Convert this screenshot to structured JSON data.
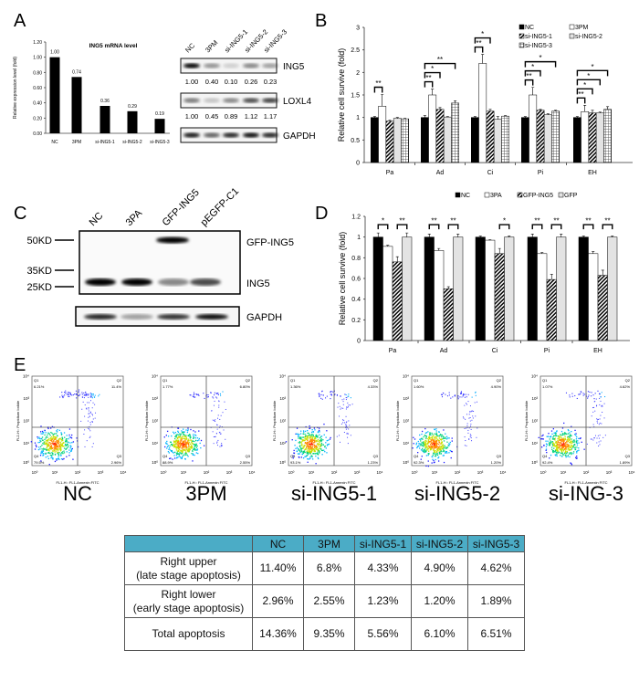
{
  "panel_labels": {
    "A": "A",
    "B": "B",
    "C": "C",
    "D": "D",
    "E": "E"
  },
  "chart_data": [
    {
      "id": "A",
      "type": "bar",
      "title": "ING5 mRNA level",
      "ylabel": "Relative expression level (fold)",
      "categories": [
        "NC",
        "3PM",
        "si-ING5-1",
        "si-ING5-2",
        "si-ING5-3"
      ],
      "values": [
        1.0,
        0.74,
        0.36,
        0.29,
        0.19
      ],
      "data_labels": [
        "1.00",
        "0.74",
        "0.36",
        "0.29",
        "0.19"
      ],
      "ylim": [
        0,
        1.2
      ],
      "yticks": [
        "0.00",
        "0.20",
        "0.40",
        "0.60",
        "0.80",
        "1.00",
        "1.20"
      ],
      "grid": false,
      "color": "#000000"
    },
    {
      "id": "B",
      "type": "bar",
      "ylabel": "Relative cell survive (fold)",
      "categories": [
        "Pa",
        "Ad",
        "Ci",
        "Pi",
        "EH"
      ],
      "ylim": [
        0,
        3
      ],
      "yticks": [
        "0",
        "0.5",
        "1",
        "1.5",
        "2",
        "2.5",
        "3"
      ],
      "legend_position": "top-right",
      "series": [
        {
          "name": "NC",
          "fill": "solid-black",
          "values": [
            1,
            1,
            1,
            1,
            1
          ],
          "errors": [
            0.02,
            0.04,
            0.02,
            0.02,
            0.02
          ]
        },
        {
          "name": "3PM",
          "fill": "white",
          "values": [
            1.25,
            1.5,
            2.2,
            1.5,
            1.13
          ],
          "errors": [
            0.26,
            0.13,
            0.2,
            0.17,
            0.14
          ]
        },
        {
          "name": "si-ING5-1",
          "fill": "diagonal-hatch",
          "values": [
            0.92,
            1.18,
            1.14,
            1.16,
            1.1
          ],
          "errors": [
            0.02,
            0.04,
            0.04,
            0.02,
            0.06
          ]
        },
        {
          "name": "si-ING5-2",
          "fill": "light-gray",
          "values": [
            0.98,
            1.01,
            0.96,
            1.06,
            1.1
          ],
          "errors": [
            0.02,
            0.01,
            0.06,
            0.02,
            0.02
          ]
        },
        {
          "name": "si-ING5-3",
          "fill": "grid",
          "values": [
            0.97,
            1.32,
            1.03,
            1.14,
            1.18
          ],
          "errors": [
            0.01,
            0.05,
            0.01,
            0.02,
            0.06
          ]
        }
      ],
      "significance": [
        {
          "category": "Pa",
          "from": "NC",
          "to": "3PM",
          "label": "**"
        },
        {
          "category": "Ad",
          "from": "NC",
          "to": "3PM",
          "label": "**"
        },
        {
          "category": "Ad",
          "from": "NC",
          "to": "si-ING5-1",
          "label": "*"
        },
        {
          "category": "Ad",
          "from": "NC",
          "to": "si-ING5-3",
          "label": "**"
        },
        {
          "category": "Ci",
          "from": "NC",
          "to": "3PM",
          "label": "**"
        },
        {
          "category": "Ci",
          "from": "NC",
          "to": "si-ING5-1",
          "label": "*"
        },
        {
          "category": "Pi",
          "from": "NC",
          "to": "3PM",
          "label": "**"
        },
        {
          "category": "Pi",
          "from": "NC",
          "to": "si-ING5-1",
          "label": "*"
        },
        {
          "category": "Pi",
          "from": "NC",
          "to": "si-ING5-3",
          "label": "*"
        },
        {
          "category": "EH",
          "from": "NC",
          "to": "3PM",
          "label": "**"
        },
        {
          "category": "EH",
          "from": "NC",
          "to": "si-ING5-1",
          "label": "*"
        },
        {
          "category": "EH",
          "from": "NC",
          "to": "si-ING5-2",
          "label": "*"
        },
        {
          "category": "EH",
          "from": "NC",
          "to": "si-ING5-3",
          "label": "*"
        }
      ]
    },
    {
      "id": "D",
      "type": "bar",
      "ylabel": "Relative cell survive (fold)",
      "categories": [
        "Pa",
        "Ad",
        "Ci",
        "Pi",
        "EH"
      ],
      "ylim": [
        0,
        1.2
      ],
      "yticks": [
        "0",
        "0.2",
        "0.4",
        "0.6",
        "0.8",
        "1",
        "1.2"
      ],
      "legend_position": "top",
      "series": [
        {
          "name": "NC",
          "fill": "solid-black",
          "values": [
            1,
            1,
            1,
            1,
            1
          ],
          "errors": [
            0.04,
            0.03,
            0.01,
            0.03,
            0.01
          ]
        },
        {
          "name": "3PA",
          "fill": "white",
          "values": [
            0.91,
            0.87,
            0.97,
            0.84,
            0.84
          ],
          "errors": [
            0.01,
            0.02,
            0.005,
            0.01,
            0.02
          ]
        },
        {
          "name": "GFP-ING5",
          "fill": "diagonal-hatch",
          "values": [
            0.76,
            0.5,
            0.84,
            0.59,
            0.63
          ],
          "errors": [
            0.05,
            0.02,
            0.05,
            0.05,
            0.05
          ]
        },
        {
          "name": "GFP",
          "fill": "light-gray",
          "values": [
            1,
            1,
            1,
            1,
            1
          ],
          "errors": [
            0.04,
            0.03,
            0.01,
            0.03,
            0.01
          ]
        }
      ],
      "significance": [
        {
          "category": "Pa",
          "from": "NC",
          "to": "3PA",
          "label": "*"
        },
        {
          "category": "Pa",
          "from": "GFP-ING5",
          "to": "GFP",
          "label": "**"
        },
        {
          "category": "Ad",
          "from": "NC",
          "to": "3PA",
          "label": "**"
        },
        {
          "category": "Ad",
          "from": "GFP-ING5",
          "to": "GFP",
          "label": "**"
        },
        {
          "category": "Ci",
          "from": "GFP-ING5",
          "to": "GFP",
          "label": "*"
        },
        {
          "category": "Pi",
          "from": "NC",
          "to": "3PA",
          "label": "**"
        },
        {
          "category": "Pi",
          "from": "GFP-ING5",
          "to": "GFP",
          "label": "**"
        },
        {
          "category": "EH",
          "from": "NC",
          "to": "3PA",
          "label": "**"
        },
        {
          "category": "EH",
          "from": "GFP-ING5",
          "to": "GFP",
          "label": "**"
        }
      ]
    }
  ],
  "blot_A": {
    "lanes": [
      "NC",
      "3PM",
      "si-ING5-1",
      "si-ING5-2",
      "si-ING5-3"
    ],
    "rows": [
      {
        "label": "ING5",
        "quant": [
          "1.00",
          "0.40",
          "0.10",
          "0.26",
          "0.23"
        ],
        "intensity": [
          1,
          0.4,
          0.15,
          0.45,
          0.35
        ]
      },
      {
        "label": "LOXL4",
        "quant": [
          "1.00",
          "0.45",
          "0.89",
          "1.12",
          "1.17"
        ],
        "intensity": [
          0.5,
          0.2,
          0.45,
          0.7,
          0.75
        ]
      },
      {
        "label": "GAPDH",
        "quant": [],
        "intensity": [
          0.9,
          0.6,
          0.85,
          0.95,
          0.85
        ]
      }
    ]
  },
  "blot_C": {
    "lanes": [
      "NC",
      "3PA",
      "GFP-ING5",
      "pEGFP-C1"
    ],
    "markers": [
      "50KD",
      "35KD",
      "25KD"
    ],
    "band_labels": [
      "GFP-ING5",
      "ING5"
    ],
    "gapdh_label": "GAPDH"
  },
  "flow_E": {
    "y_axis_label": "FL2-H:: Propidium Iodide",
    "x_axis_label": "FL1-H:: FL1-Annexin FITC",
    "axis_ticks": [
      "10⁰",
      "10¹",
      "10²",
      "10³",
      "10⁴"
    ],
    "plots": [
      {
        "label": "NC",
        "Q1": "6.21%",
        "Q2": "11.4%",
        "Q3": "2.96%",
        "Q4": "79.5%"
      },
      {
        "label": "3PM",
        "Q1": "1.77%",
        "Q2": "6.80%",
        "Q3": "2.55%",
        "Q4": "88.9%"
      },
      {
        "label": "si-ING5-1",
        "Q1": "1.36%",
        "Q2": "4.33%",
        "Q3": "1.23%",
        "Q4": "93.1%"
      },
      {
        "label": "si-ING5-2",
        "Q1": "1.60%",
        "Q2": "4.90%",
        "Q3": "1.20%",
        "Q4": "92.3%"
      },
      {
        "label": "si-ING-3",
        "Q1": "1.07%",
        "Q2": "4.62%",
        "Q3": "1.89%",
        "Q4": "92.4%"
      }
    ]
  },
  "table_E": {
    "header_color": "#4bacc6",
    "columns": [
      "",
      "NC",
      "3PM",
      "si-ING5-1",
      "si-ING5-2",
      "si-ING5-3"
    ],
    "rows": [
      {
        "label": "Right upper",
        "sublabel": "(late stage apoptosis)",
        "values": [
          "11.40%",
          "6.8%",
          "4.33%",
          "4.90%",
          "4.62%"
        ]
      },
      {
        "label": "Right lower",
        "sublabel": "(early stage apoptosis)",
        "values": [
          "2.96%",
          "2.55%",
          "1.23%",
          "1.20%",
          "1.89%"
        ]
      },
      {
        "label": "Total apoptosis",
        "sublabel": "",
        "values": [
          "14.36%",
          "9.35%",
          "5.56%",
          "6.10%",
          "6.51%"
        ]
      }
    ]
  }
}
